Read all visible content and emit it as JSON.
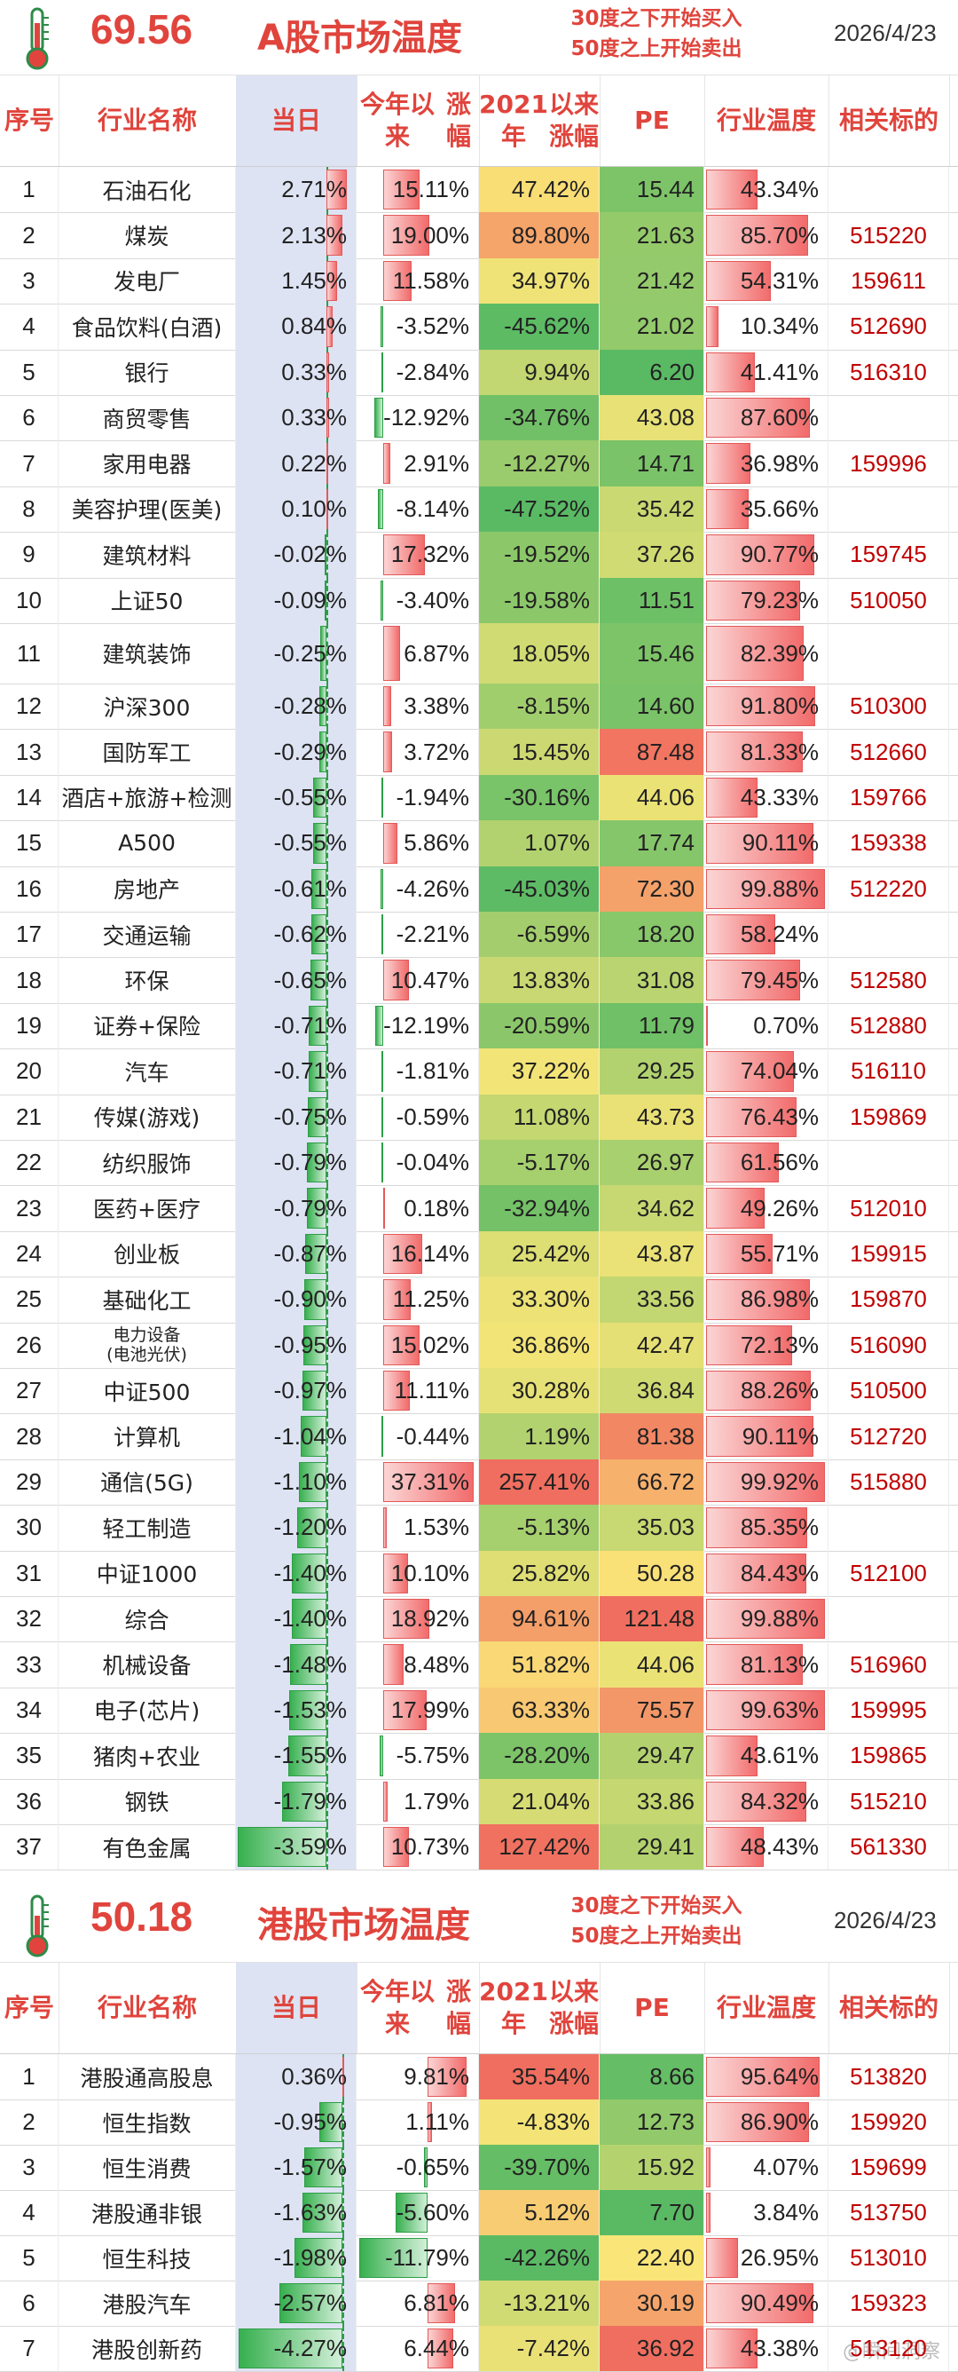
{
  "a_share": {
    "temperature": "69.56",
    "title": "A股市场温度",
    "advice_line1": "30度之下开始买入",
    "advice_line2": "50度之上开始卖出",
    "date": "2026/4/23",
    "headers": {
      "idx": "序号",
      "name": "行业名称",
      "today": "当日",
      "ytd": "今年以来涨幅",
      "since2021": "2021年以来涨幅",
      "pe": "PE",
      "temp": "行业温度",
      "ticker": "相关标的"
    },
    "rows": [
      {
        "idx": "1",
        "name": "石油石化",
        "today": "2.71%",
        "ytd": "15.11%",
        "since2021": "47.42%",
        "pe": "15.44",
        "temp": "43.34%",
        "ticker": ""
      },
      {
        "idx": "2",
        "name": "煤炭",
        "today": "2.13%",
        "ytd": "19.00%",
        "since2021": "89.80%",
        "pe": "21.63",
        "temp": "85.70%",
        "ticker": "515220"
      },
      {
        "idx": "3",
        "name": "发电厂",
        "today": "1.45%",
        "ytd": "11.58%",
        "since2021": "34.97%",
        "pe": "21.42",
        "temp": "54.31%",
        "ticker": "159611"
      },
      {
        "idx": "4",
        "name": "食品饮料(白酒)",
        "today": "0.84%",
        "ytd": "-3.52%",
        "since2021": "-45.62%",
        "pe": "21.02",
        "temp": "10.34%",
        "ticker": "512690"
      },
      {
        "idx": "5",
        "name": "银行",
        "today": "0.33%",
        "ytd": "-2.84%",
        "since2021": "9.94%",
        "pe": "6.20",
        "temp": "41.41%",
        "ticker": "516310"
      },
      {
        "idx": "6",
        "name": "商贸零售",
        "today": "0.33%",
        "ytd": "-12.92%",
        "since2021": "-34.76%",
        "pe": "43.08",
        "temp": "87.60%",
        "ticker": ""
      },
      {
        "idx": "7",
        "name": "家用电器",
        "today": "0.22%",
        "ytd": "2.91%",
        "since2021": "-12.27%",
        "pe": "14.71",
        "temp": "36.98%",
        "ticker": "159996"
      },
      {
        "idx": "8",
        "name": "美容护理(医美)",
        "today": "0.10%",
        "ytd": "-8.14%",
        "since2021": "-47.52%",
        "pe": "35.42",
        "temp": "35.66%",
        "ticker": ""
      },
      {
        "idx": "9",
        "name": "建筑材料",
        "today": "-0.02%",
        "ytd": "17.32%",
        "since2021": "-19.52%",
        "pe": "37.26",
        "temp": "90.77%",
        "ticker": "159745"
      },
      {
        "idx": "10",
        "name": "上证50",
        "today": "-0.09%",
        "ytd": "-3.40%",
        "since2021": "-19.58%",
        "pe": "11.51",
        "temp": "79.23%",
        "ticker": "510050"
      },
      {
        "idx": "11",
        "name": "建筑装饰",
        "today": "-0.25%",
        "ytd": "6.87%",
        "since2021": "18.05%",
        "pe": "15.46",
        "temp": "82.39%",
        "ticker": ""
      },
      {
        "idx": "12",
        "name": "沪深300",
        "today": "-0.28%",
        "ytd": "3.38%",
        "since2021": "-8.15%",
        "pe": "14.60",
        "temp": "91.80%",
        "ticker": "510300"
      },
      {
        "idx": "13",
        "name": "国防军工",
        "today": "-0.29%",
        "ytd": "3.72%",
        "since2021": "15.45%",
        "pe": "87.48",
        "temp": "81.33%",
        "ticker": "512660"
      },
      {
        "idx": "14",
        "name": "酒店+旅游+检测",
        "today": "-0.55%",
        "ytd": "-1.94%",
        "since2021": "-30.16%",
        "pe": "44.06",
        "temp": "43.33%",
        "ticker": "159766"
      },
      {
        "idx": "15",
        "name": "A500",
        "today": "-0.55%",
        "ytd": "5.86%",
        "since2021": "1.07%",
        "pe": "17.74",
        "temp": "90.11%",
        "ticker": "159338"
      },
      {
        "idx": "16",
        "name": "房地产",
        "today": "-0.61%",
        "ytd": "-4.26%",
        "since2021": "-45.03%",
        "pe": "72.30",
        "temp": "99.88%",
        "ticker": "512220"
      },
      {
        "idx": "17",
        "name": "交通运输",
        "today": "-0.62%",
        "ytd": "-2.21%",
        "since2021": "-6.59%",
        "pe": "18.20",
        "temp": "58.24%",
        "ticker": ""
      },
      {
        "idx": "18",
        "name": "环保",
        "today": "-0.65%",
        "ytd": "10.47%",
        "since2021": "13.83%",
        "pe": "31.08",
        "temp": "79.45%",
        "ticker": "512580"
      },
      {
        "idx": "19",
        "name": "证券+保险",
        "today": "-0.71%",
        "ytd": "-12.19%",
        "since2021": "-20.59%",
        "pe": "11.79",
        "temp": "0.70%",
        "ticker": "512880"
      },
      {
        "idx": "20",
        "name": "汽车",
        "today": "-0.71%",
        "ytd": "-1.81%",
        "since2021": "37.22%",
        "pe": "29.25",
        "temp": "74.04%",
        "ticker": "516110"
      },
      {
        "idx": "21",
        "name": "传媒(游戏)",
        "today": "-0.75%",
        "ytd": "-0.59%",
        "since2021": "11.08%",
        "pe": "43.73",
        "temp": "76.43%",
        "ticker": "159869"
      },
      {
        "idx": "22",
        "name": "纺织服饰",
        "today": "-0.79%",
        "ytd": "-0.04%",
        "since2021": "-5.17%",
        "pe": "26.97",
        "temp": "61.56%",
        "ticker": ""
      },
      {
        "idx": "23",
        "name": "医药+医疗",
        "today": "-0.79%",
        "ytd": "0.18%",
        "since2021": "-32.94%",
        "pe": "34.62",
        "temp": "49.26%",
        "ticker": "512010"
      },
      {
        "idx": "24",
        "name": "创业板",
        "today": "-0.87%",
        "ytd": "16.14%",
        "since2021": "25.42%",
        "pe": "43.87",
        "temp": "55.71%",
        "ticker": "159915"
      },
      {
        "idx": "25",
        "name": "基础化工",
        "today": "-0.90%",
        "ytd": "11.25%",
        "since2021": "33.30%",
        "pe": "33.56",
        "temp": "86.98%",
        "ticker": "159870"
      },
      {
        "idx": "26",
        "name": "电力设备(电池光伏)",
        "name_line1": "电力设备",
        "name_line2": "(电池光伏)",
        "today": "-0.95%",
        "ytd": "15.02%",
        "since2021": "36.86%",
        "pe": "42.47",
        "temp": "72.13%",
        "ticker": "516090"
      },
      {
        "idx": "27",
        "name": "中证500",
        "today": "-0.97%",
        "ytd": "11.11%",
        "since2021": "30.28%",
        "pe": "36.84",
        "temp": "88.26%",
        "ticker": "510500"
      },
      {
        "idx": "28",
        "name": "计算机",
        "today": "-1.04%",
        "ytd": "-0.44%",
        "since2021": "1.19%",
        "pe": "81.38",
        "temp": "90.11%",
        "ticker": "512720"
      },
      {
        "idx": "29",
        "name": "通信(5G)",
        "today": "-1.10%",
        "ytd": "37.31%",
        "since2021": "257.41%",
        "pe": "66.72",
        "temp": "99.92%",
        "ticker": "515880"
      },
      {
        "idx": "30",
        "name": "轻工制造",
        "today": "-1.20%",
        "ytd": "1.53%",
        "since2021": "-5.13%",
        "pe": "35.03",
        "temp": "85.35%",
        "ticker": ""
      },
      {
        "idx": "31",
        "name": "中证1000",
        "today": "-1.40%",
        "ytd": "10.10%",
        "since2021": "25.82%",
        "pe": "50.28",
        "temp": "84.43%",
        "ticker": "512100"
      },
      {
        "idx": "32",
        "name": "综合",
        "today": "-1.40%",
        "ytd": "18.92%",
        "since2021": "94.61%",
        "pe": "121.48",
        "temp": "99.88%",
        "ticker": ""
      },
      {
        "idx": "33",
        "name": "机械设备",
        "today": "-1.48%",
        "ytd": "8.48%",
        "since2021": "51.82%",
        "pe": "44.06",
        "temp": "81.13%",
        "ticker": "516960"
      },
      {
        "idx": "34",
        "name": "电子(芯片)",
        "today": "-1.53%",
        "ytd": "17.99%",
        "since2021": "63.33%",
        "pe": "75.57",
        "temp": "99.63%",
        "ticker": "159995"
      },
      {
        "idx": "35",
        "name": "猪肉+农业",
        "today": "-1.55%",
        "ytd": "-5.75%",
        "since2021": "-28.20%",
        "pe": "29.47",
        "temp": "43.61%",
        "ticker": "159865"
      },
      {
        "idx": "36",
        "name": "钢铁",
        "today": "-1.79%",
        "ytd": "1.79%",
        "since2021": "21.04%",
        "pe": "33.86",
        "temp": "84.32%",
        "ticker": "515210"
      },
      {
        "idx": "37",
        "name": "有色金属",
        "today": "-3.59%",
        "ytd": "10.73%",
        "since2021": "127.42%",
        "pe": "29.41",
        "temp": "48.43%",
        "ticker": "561330"
      }
    ]
  },
  "hk_share": {
    "temperature": "50.18",
    "title": "港股市场温度",
    "advice_line1": "30度之下开始买入",
    "advice_line2": "50度之上开始卖出",
    "date": "2026/4/23",
    "rows": [
      {
        "idx": "1",
        "name": "港股通高股息",
        "today": "0.36%",
        "ytd": "9.81%",
        "since2021": "35.54%",
        "pe": "8.66",
        "temp": "95.64%",
        "ticker": "513820"
      },
      {
        "idx": "2",
        "name": "恒生指数",
        "today": "-0.95%",
        "ytd": "1.11%",
        "since2021": "-4.83%",
        "pe": "12.73",
        "temp": "86.90%",
        "ticker": "159920"
      },
      {
        "idx": "3",
        "name": "恒生消费",
        "today": "-1.57%",
        "ytd": "-0.65%",
        "since2021": "-39.70%",
        "pe": "15.92",
        "temp": "4.07%",
        "ticker": "159699"
      },
      {
        "idx": "4",
        "name": "港股通非银",
        "today": "-1.63%",
        "ytd": "-5.60%",
        "since2021": "5.12%",
        "pe": "7.70",
        "temp": "3.84%",
        "ticker": "513750"
      },
      {
        "idx": "5",
        "name": "恒生科技",
        "today": "-1.98%",
        "ytd": "-11.79%",
        "since2021": "-42.26%",
        "pe": "22.40",
        "temp": "26.95%",
        "ticker": "513010"
      },
      {
        "idx": "6",
        "name": "港股汽车",
        "today": "-2.57%",
        "ytd": "6.81%",
        "since2021": "-13.21%",
        "pe": "30.19",
        "temp": "90.49%",
        "ticker": "159323"
      },
      {
        "idx": "7",
        "name": "港股创新药",
        "today": "-4.27%",
        "ytd": "6.44%",
        "since2021": "-7.42%",
        "pe": "36.92",
        "temp": "43.38%",
        "ticker": "513120"
      }
    ]
  },
  "colors": {
    "accent": "#e0443c",
    "ticker": "#c00000",
    "today_col_bg": "#dde3f3",
    "pos_bar": "#f26b6b",
    "neg_bar": "#37b04f"
  },
  "watermark": "@瞬间洞察"
}
